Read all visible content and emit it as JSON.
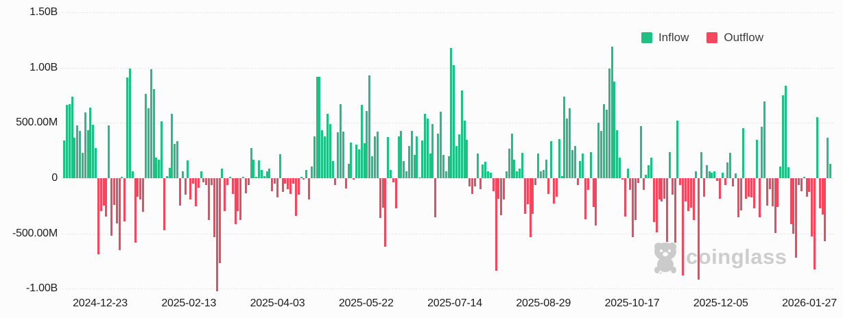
{
  "page": {
    "background": "#fcfcfc"
  },
  "legend": {
    "items": [
      {
        "label": "Inflow",
        "color": "#1EC083"
      },
      {
        "label": "Outflow",
        "color": "#F4465D"
      }
    ]
  },
  "watermark": {
    "text": "coinglass"
  },
  "chart_data": {
    "type": "bar",
    "title": "",
    "xlabel": "",
    "ylabel": "",
    "unit": "USD flow per day",
    "grid": "horizontal-dashed",
    "legend_position": "top-right",
    "y_ticks": [
      "1.50B",
      "1.00B",
      "500.00M",
      "0",
      "-500.00M",
      "-1.00B"
    ],
    "y_tick_values_m": [
      1500,
      1000,
      500,
      0,
      -500,
      -1000
    ],
    "ylim_m": [
      -1150,
      1550
    ],
    "x_tick_labels": [
      "2024-12-23",
      "2025-02-13",
      "2025-04-03",
      "2025-05-22",
      "2025-07-14",
      "2025-08-29",
      "2025-10-17",
      "2025-12-05",
      "2026-01-27"
    ],
    "series": [
      {
        "name": "Inflow",
        "color": "#1EC083",
        "rule": "values_m >= 0"
      },
      {
        "name": "Outflow",
        "color": "#F4465D",
        "rule": "values_m < 0"
      }
    ],
    "values_m": [
      340,
      665,
      670,
      735,
      365,
      480,
      430,
      230,
      595,
      435,
      640,
      485,
      270,
      -690,
      -300,
      -250,
      -350,
      480,
      -520,
      -240,
      -410,
      -650,
      10,
      -390,
      910,
      990,
      60,
      -585,
      -170,
      -190,
      -305,
      760,
      630,
      985,
      805,
      185,
      170,
      515,
      -470,
      20,
      90,
      585,
      310,
      335,
      -245,
      60,
      -150,
      160,
      -190,
      -50,
      -255,
      -85,
      60,
      -35,
      -60,
      -375,
      -60,
      -530,
      -1020,
      -770,
      85,
      -295,
      -60,
      15,
      -140,
      -415,
      -300,
      -375,
      10,
      -135,
      -60,
      275,
      170,
      10,
      160,
      75,
      20,
      65,
      85,
      -115,
      -50,
      -175,
      215,
      -125,
      -50,
      -100,
      -140,
      -50,
      -340,
      -150,
      10,
      -10,
      75,
      -190,
      105,
      375,
      915,
      920,
      435,
      375,
      585,
      490,
      155,
      -60,
      415,
      670,
      420,
      -95,
      130,
      325,
      -15,
      305,
      260,
      660,
      315,
      605,
      930,
      200,
      380,
      420,
      -360,
      -265,
      -620,
      370,
      75,
      -35,
      -270,
      380,
      430,
      155,
      60,
      290,
      425,
      210,
      375,
      5,
      340,
      585,
      540,
      225,
      490,
      -355,
      400,
      600,
      210,
      60,
      200,
      1175,
      1020,
      290,
      395,
      795,
      520,
      350,
      -75,
      -140,
      -75,
      220,
      -100,
      125,
      150,
      60,
      50,
      -115,
      -835,
      -185,
      -335,
      -190,
      65,
      265,
      400,
      170,
      60,
      85,
      230,
      -325,
      -235,
      -530,
      -325,
      -60,
      220,
      65,
      75,
      165,
      -140,
      335,
      -230,
      -170,
      355,
      20,
      740,
      540,
      635,
      255,
      290,
      -65,
      155,
      225,
      -370,
      -105,
      235,
      -260,
      -425,
      505,
      425,
      670,
      620,
      990,
      1190,
      875,
      435,
      185,
      -15,
      -345,
      85,
      -105,
      -530,
      -380,
      -45,
      470,
      -105,
      30,
      115,
      185,
      -395,
      -490,
      -190,
      -210,
      -185,
      -575,
      235,
      -150,
      -580,
      520,
      -65,
      -880,
      -210,
      -300,
      -265,
      -380,
      65,
      -920,
      235,
      -165,
      115,
      60,
      50,
      60,
      -25,
      -185,
      50,
      -60,
      140,
      230,
      -75,
      45,
      -355,
      -290,
      450,
      -185,
      -170,
      -175,
      -270,
      350,
      -355,
      465,
      695,
      -245,
      -100,
      -255,
      -495,
      -260,
      105,
      750,
      835,
      100,
      -415,
      -500,
      -720,
      -60,
      -115,
      10,
      -165,
      -125,
      -525,
      -825,
      550,
      -270,
      -330,
      -570,
      365,
      130
    ]
  }
}
